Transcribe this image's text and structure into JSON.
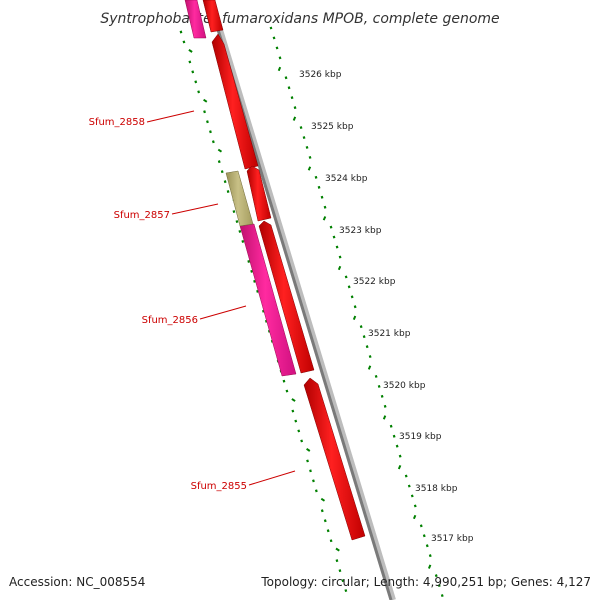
{
  "title": "Syntrophobacter fumaroxidans MPOB, complete genome",
  "footer": {
    "accession": "Accession: NC_008554",
    "topology": "Topology: circular; Length: 4,990,251 bp; Genes: 4,127"
  },
  "kbp_ticks": [
    "3526 kbp",
    "3525 kbp",
    "3524 kbp",
    "3523 kbp",
    "3522 kbp",
    "3521 kbp",
    "3520 kbp",
    "3519 kbp",
    "3518 kbp",
    "3517 kbp"
  ],
  "gene_labels": [
    "Sfum_2858",
    "Sfum_2857",
    "Sfum_2856",
    "Sfum_2855"
  ],
  "colors": {
    "cds_red": "#ff0000",
    "cds_pink": "#ff1493",
    "cds_olive": "#b8b070",
    "backbone": "#808080",
    "tick_green": "#008000",
    "label_red": "#cc0000"
  }
}
